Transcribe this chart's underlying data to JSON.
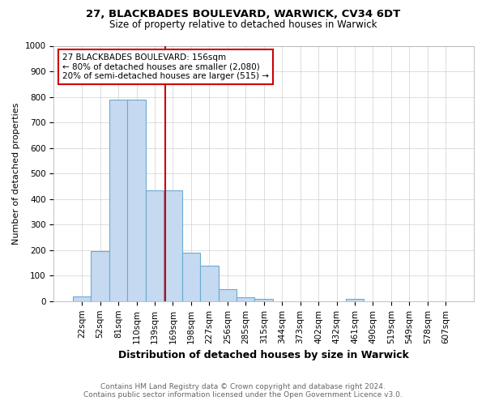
{
  "title1": "27, BLACKBADES BOULEVARD, WARWICK, CV34 6DT",
  "title2": "Size of property relative to detached houses in Warwick",
  "xlabel": "Distribution of detached houses by size in Warwick",
  "ylabel": "Number of detached properties",
  "footnote1": "Contains HM Land Registry data © Crown copyright and database right 2024.",
  "footnote2": "Contains public sector information licensed under the Open Government Licence v3.0.",
  "categories": [
    "22sqm",
    "52sqm",
    "81sqm",
    "110sqm",
    "139sqm",
    "169sqm",
    "198sqm",
    "227sqm",
    "256sqm",
    "285sqm",
    "315sqm",
    "344sqm",
    "373sqm",
    "402sqm",
    "432sqm",
    "461sqm",
    "490sqm",
    "519sqm",
    "549sqm",
    "578sqm",
    "607sqm"
  ],
  "values": [
    18,
    195,
    790,
    790,
    435,
    435,
    190,
    140,
    47,
    15,
    10,
    0,
    0,
    0,
    0,
    8,
    0,
    0,
    0,
    0,
    0
  ],
  "bar_color": "#c5d9f0",
  "bar_edge_color": "#6aaad4",
  "property_line_color": "#cc0000",
  "annotation_text": "27 BLACKBADES BOULEVARD: 156sqm\n← 80% of detached houses are smaller (2,080)\n20% of semi-detached houses are larger (515) →",
  "annotation_box_color": "#cc0000",
  "ylim": [
    0,
    1000
  ],
  "yticks": [
    0,
    100,
    200,
    300,
    400,
    500,
    600,
    700,
    800,
    900,
    1000
  ],
  "background_color": "#ffffff",
  "grid_color": "#d0d0d0",
  "title1_fontsize": 9.5,
  "title2_fontsize": 8.5,
  "ylabel_fontsize": 8,
  "xlabel_fontsize": 9,
  "tick_fontsize": 7.5,
  "footnote_fontsize": 6.5,
  "footnote_color": "#666666"
}
